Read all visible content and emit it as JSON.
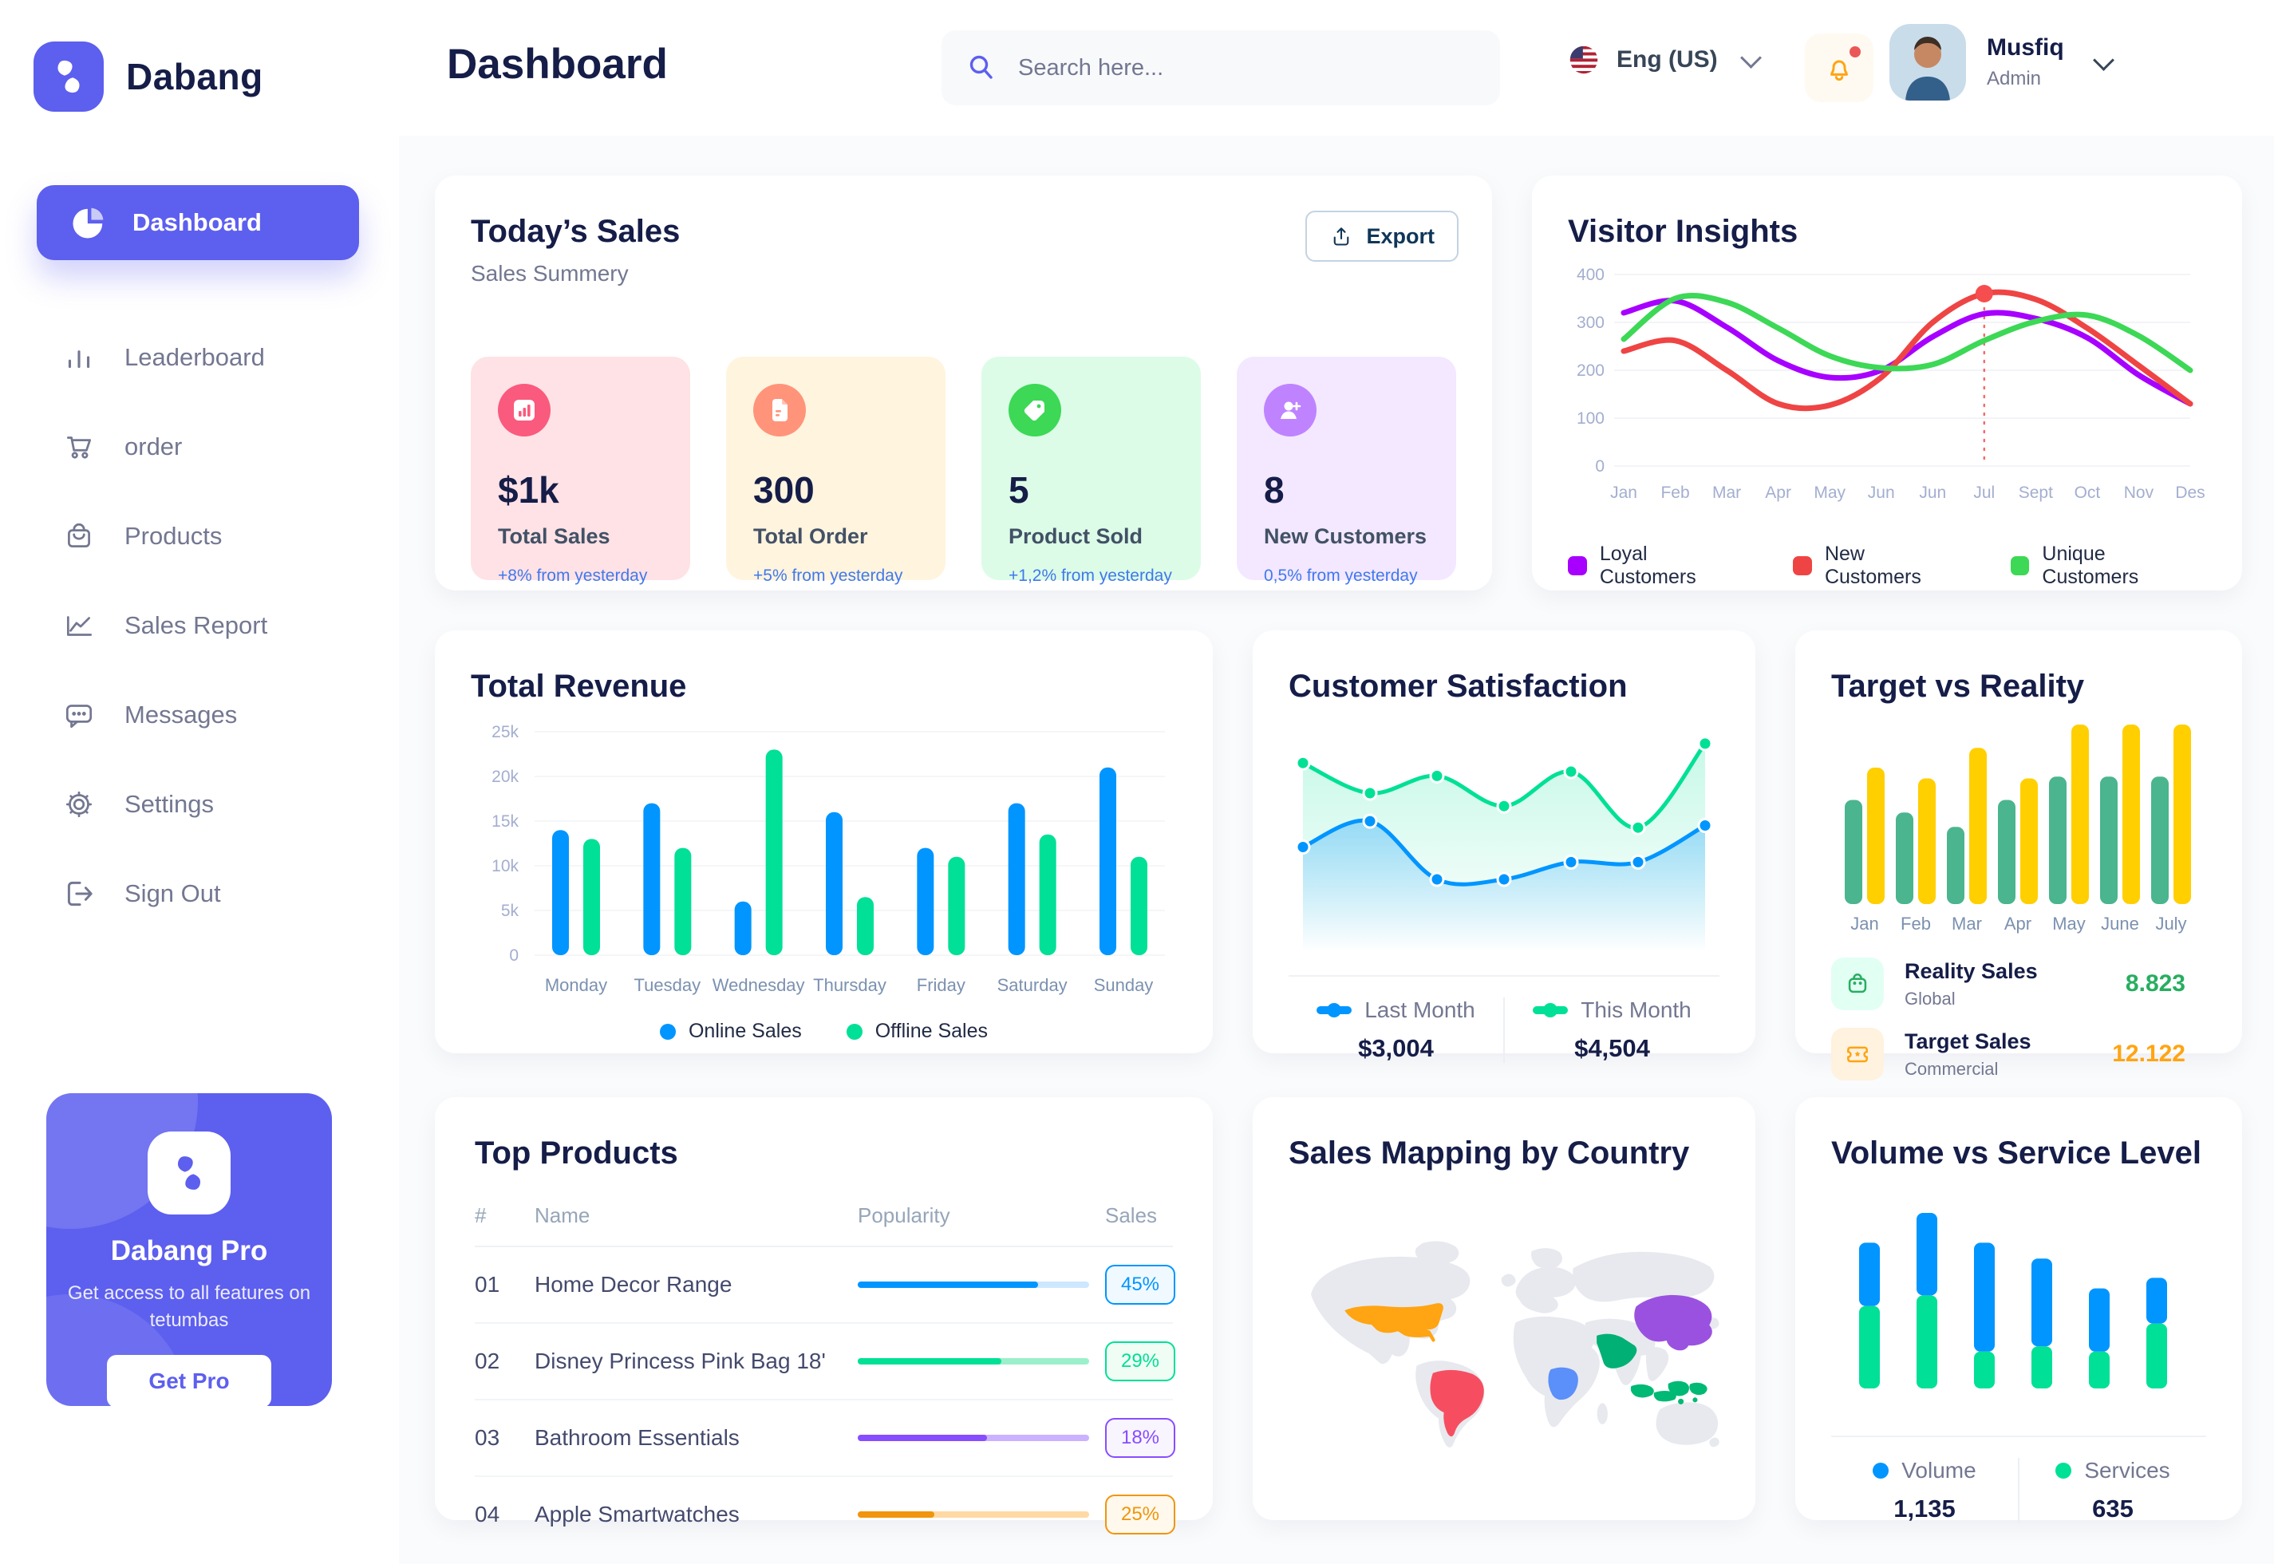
{
  "app": {
    "brand": "Dabang",
    "accent_color": "#5D5FEF"
  },
  "header": {
    "page_title": "Dashboard",
    "search_placeholder": "Search here...",
    "language": "Eng (US)",
    "user_name": "Musfiq",
    "user_role": "Admin"
  },
  "sidebar": {
    "active_item": "Dashboard",
    "items": [
      {
        "label": "Leaderboard",
        "icon": "bar-chart-icon"
      },
      {
        "label": "order",
        "icon": "cart-icon"
      },
      {
        "label": "Products",
        "icon": "bag-icon"
      },
      {
        "label": "Sales Report",
        "icon": "line-chart-icon"
      },
      {
        "label": "Messages",
        "icon": "message-icon"
      },
      {
        "label": "Settings",
        "icon": "gear-icon"
      },
      {
        "label": "Sign Out",
        "icon": "sign-out-icon"
      }
    ],
    "pro_card": {
      "title": "Dabang Pro",
      "description": "Get access to all features on tetumbas",
      "button_label": "Get Pro"
    }
  },
  "today_sales": {
    "title": "Today’s Sales",
    "subtitle": "Sales Summery",
    "export_label": "Export",
    "stats": [
      {
        "value": "$1k",
        "label": "Total Sales",
        "delta": "+8% from yesterday",
        "bg": "#FFE2E5",
        "accent": "#FA5A7D",
        "icon": "chart-icon"
      },
      {
        "value": "300",
        "label": "Total Order",
        "delta": "+5% from yesterday",
        "bg": "#FFF4DE",
        "accent": "#FF947A",
        "icon": "file-icon"
      },
      {
        "value": "5",
        "label": "Product Sold",
        "delta": "+1,2% from yesterday",
        "bg": "#DCFCE7",
        "accent": "#3CD856",
        "icon": "tag-icon"
      },
      {
        "value": "8",
        "label": "New Customers",
        "delta": "0,5% from yesterday",
        "bg": "#F3E8FF",
        "accent": "#BF83FF",
        "icon": "user-plus-icon"
      }
    ]
  },
  "charts": {
    "visitor_insights": {
      "type": "line",
      "title": "Visitor Insights",
      "x": [
        "Jan",
        "Feb",
        "Mar",
        "Apr",
        "May",
        "Jun",
        "Jun",
        "Jul",
        "Sept",
        "Oct",
        "Nov",
        "Des"
      ],
      "y_ticks": [
        0,
        100,
        200,
        300,
        400
      ],
      "ylim": [
        0,
        400
      ],
      "annotation": {
        "x_index": 7,
        "value": 360,
        "color": "#F64E4E"
      },
      "series": [
        {
          "name": "Loyal Customers",
          "color": "#A700FF",
          "values": [
            320,
            345,
            290,
            220,
            185,
            200,
            270,
            318,
            308,
            268,
            190,
            130
          ]
        },
        {
          "name": "New Customers",
          "color": "#EF4444",
          "values": [
            240,
            262,
            200,
            130,
            127,
            185,
            300,
            360,
            348,
            288,
            210,
            130
          ]
        },
        {
          "name": "Unique Customers",
          "color": "#3CD856",
          "values": [
            265,
            350,
            342,
            288,
            230,
            205,
            212,
            262,
            302,
            315,
            272,
            200
          ]
        }
      ],
      "legend_position": "bottom"
    },
    "total_revenue": {
      "type": "bar",
      "title": "Total Revenue",
      "categories": [
        "Monday",
        "Tuesday",
        "Wednesday",
        "Thursday",
        "Friday",
        "Saturday",
        "Sunday"
      ],
      "y_ticks": [
        "0",
        "5k",
        "10k",
        "15k",
        "20k",
        "25k"
      ],
      "ylim": [
        0,
        25
      ],
      "series": [
        {
          "name": "Online Sales",
          "color": "#0095FF",
          "values": [
            14,
            17,
            6,
            16,
            12,
            17,
            21
          ]
        },
        {
          "name": "Offline Sales",
          "color": "#00E096",
          "values": [
            13,
            12,
            23,
            6.5,
            11,
            13.5,
            11
          ]
        }
      ],
      "legend_position": "bottom"
    },
    "customer_satisfaction": {
      "type": "area",
      "title": "Customer Satisfaction",
      "series": [
        {
          "name": "Last Month",
          "total": "$3,004",
          "color": "#0095FF",
          "values": [
            45,
            57,
            30,
            30,
            38,
            38,
            55
          ]
        },
        {
          "name": "This Month",
          "total": "$4,504",
          "color": "#00E096",
          "values": [
            84,
            70,
            78,
            64,
            80,
            54,
            93
          ]
        }
      ],
      "legend_position": "bottom"
    },
    "target_vs_reality": {
      "type": "bar",
      "title": "Target vs Reality",
      "categories": [
        "Jan",
        "Feb",
        "Mar",
        "Apr",
        "May",
        "June",
        "July"
      ],
      "series": [
        {
          "name": "Reality Sales",
          "sub": "Global",
          "color": "#4AB58E",
          "total": "8.823",
          "total_color": "#27AE60",
          "values": [
            58,
            51,
            43,
            58,
            71,
            71,
            71
          ]
        },
        {
          "name": "Target Sales",
          "sub": "Commercial",
          "color": "#FFCF00",
          "total": "12.122",
          "total_color": "#FFA412",
          "values": [
            76,
            70,
            87,
            70,
            100,
            100,
            100
          ]
        }
      ]
    },
    "volume_service": {
      "type": "stacked-bar",
      "title": "Volume vs Service Level",
      "series": [
        {
          "name": "Volume",
          "color": "#0095FF",
          "total": "1,135",
          "values": [
            36,
            47,
            62,
            50,
            36,
            26
          ]
        },
        {
          "name": "Services",
          "color": "#00E096",
          "total": "635",
          "values": [
            47,
            53,
            21,
            24,
            21,
            37
          ]
        }
      ],
      "legend_position": "bottom"
    }
  },
  "top_products": {
    "title": "Top Products",
    "headers": [
      "#",
      "Name",
      "Popularity",
      "Sales"
    ],
    "rows": [
      {
        "num": "01",
        "name": "Home Decor Range",
        "popularity": 78,
        "sales": "45%",
        "color": "#0095FF",
        "track": "#CDE7FF",
        "badge_bg": "#F0F9FF"
      },
      {
        "num": "02",
        "name": "Disney Princess Pink Bag 18'",
        "popularity": 62,
        "sales": "29%",
        "color": "#00E096",
        "track": "#9CEFCB",
        "badge_bg": "#F0FDF4"
      },
      {
        "num": "03",
        "name": "Bathroom Essentials",
        "popularity": 56,
        "sales": "18%",
        "color": "#884DFF",
        "track": "#CBB2FF",
        "badge_bg": "#F9F5FF"
      },
      {
        "num": "04",
        "name": "Apple Smartwatches",
        "popularity": 33,
        "sales": "25%",
        "color": "#F0950C",
        "track": "#FFD9A3",
        "badge_bg": "#FFF8EC"
      }
    ]
  },
  "sales_map": {
    "title": "Sales Mapping by Country",
    "countries": [
      {
        "name": "United States",
        "color": "#FFA412"
      },
      {
        "name": "Brazil",
        "color": "#F64E60"
      },
      {
        "name": "DR Congo",
        "color": "#5B8FF9"
      },
      {
        "name": "Saudi Arabia",
        "color": "#00B074"
      },
      {
        "name": "China",
        "color": "#9B51E0"
      },
      {
        "name": "Indonesia",
        "color": "#00B974"
      }
    ]
  }
}
